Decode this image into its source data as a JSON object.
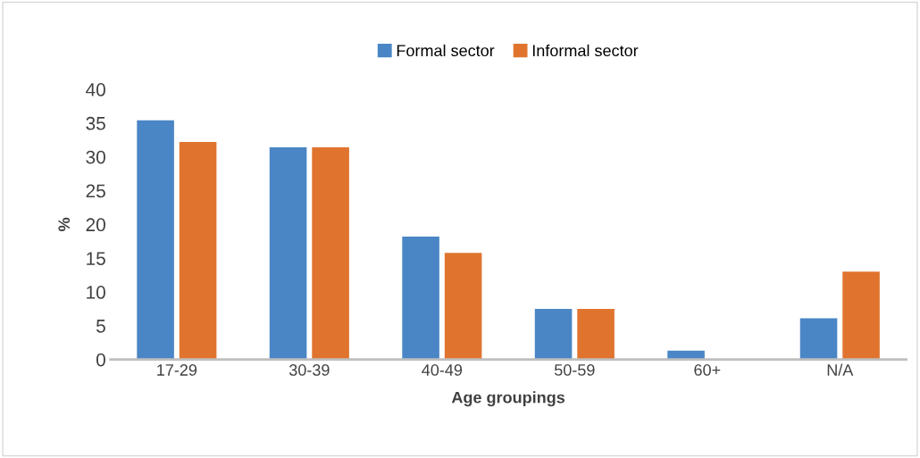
{
  "chart_data": {
    "type": "bar",
    "xlabel": "Age groupings",
    "ylabel": "%",
    "categories": [
      "17-29",
      "30-39",
      "40-49",
      "50-59",
      "60+",
      "N/A"
    ],
    "series": [
      {
        "name": "Formal sector",
        "color": "#4a86c5",
        "values": [
          35.4,
          31.4,
          18.2,
          7.5,
          1.3,
          6.1
        ]
      },
      {
        "name": "Informal sector",
        "color": "#e0742e",
        "values": [
          32.2,
          31.4,
          15.8,
          7.5,
          0,
          13.0
        ]
      }
    ],
    "ylim": [
      0,
      40
    ],
    "yticks": [
      0,
      5,
      10,
      15,
      20,
      25,
      30,
      35,
      40
    ],
    "grid": false,
    "legend": "top"
  }
}
